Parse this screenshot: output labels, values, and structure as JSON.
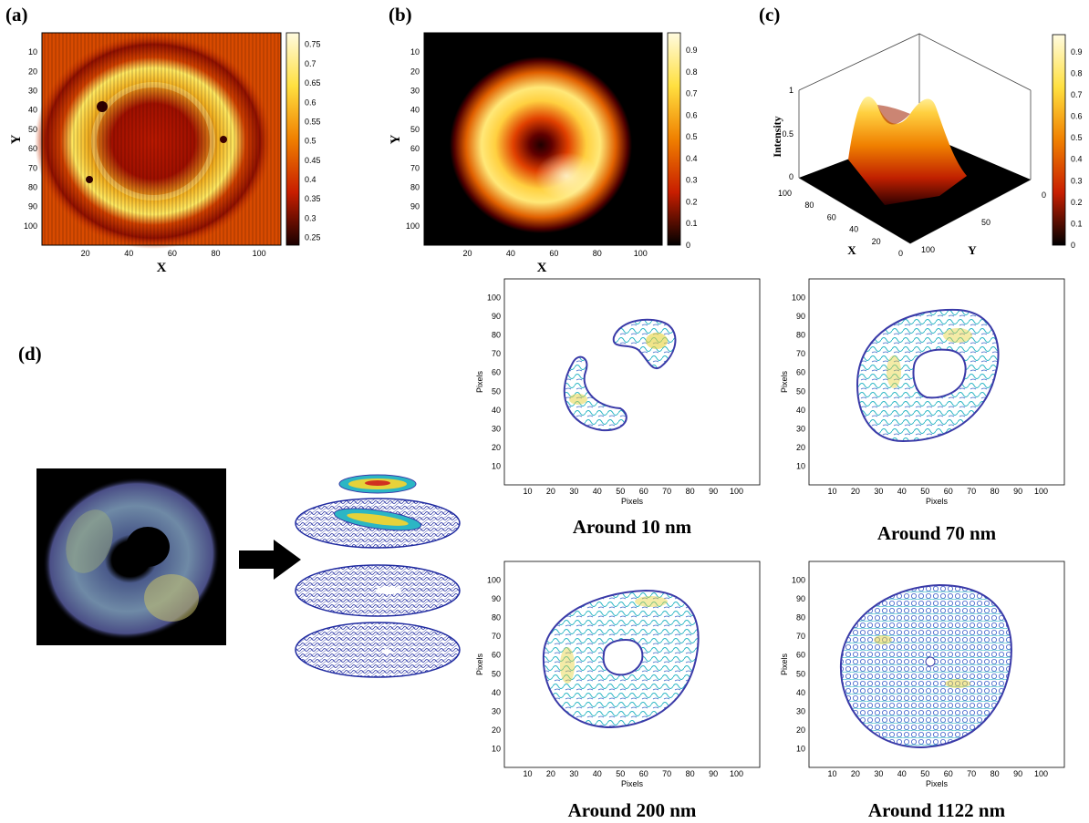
{
  "panels": {
    "a": "(a)",
    "b": "(b)",
    "c": "(c)",
    "d": "(d)"
  },
  "heatmap_a": {
    "xlabel": "X",
    "ylabel": "Y",
    "xticks": [
      "20",
      "40",
      "60",
      "80",
      "100"
    ],
    "yticks": [
      "10",
      "20",
      "30",
      "40",
      "50",
      "60",
      "70",
      "80",
      "90",
      "100"
    ],
    "colorbar_ticks": [
      "0.75",
      "0.7",
      "0.65",
      "0.6",
      "0.55",
      "0.5",
      "0.45",
      "0.4",
      "0.35",
      "0.3",
      "0.25"
    ]
  },
  "heatmap_b": {
    "xlabel": "X",
    "ylabel": "Y",
    "xticks": [
      "20",
      "40",
      "60",
      "80",
      "100"
    ],
    "yticks": [
      "10",
      "20",
      "30",
      "40",
      "50",
      "60",
      "70",
      "80",
      "90",
      "100"
    ],
    "colorbar_ticks": [
      "0.9",
      "0.8",
      "0.7",
      "0.6",
      "0.5",
      "0.4",
      "0.3",
      "0.2",
      "0.1",
      "0"
    ]
  },
  "surface_c": {
    "zlabel": "Intensity",
    "xlabel": "X",
    "ylabel": "Y",
    "zticks": [
      "1",
      "0.5",
      "0"
    ],
    "xticks": [
      "100",
      "80",
      "60",
      "40",
      "20",
      "0"
    ],
    "yticks": [
      "0",
      "50",
      "100"
    ],
    "colorbar_ticks": [
      "0.9",
      "0.8",
      "0.7",
      "0.6",
      "0.5",
      "0.4",
      "0.3",
      "0.2",
      "0.1",
      "0"
    ]
  },
  "contours": [
    {
      "caption": "Around 10 nm",
      "xlabel": "Pixels",
      "ylabel": "Pixels"
    },
    {
      "caption": "Around 70 nm",
      "xlabel": "Pixels",
      "ylabel": "Pixels"
    },
    {
      "caption": "Around 200 nm",
      "xlabel": "Pixels",
      "ylabel": "Pixels"
    },
    {
      "caption": "Around 1122 nm",
      "xlabel": "Pixels",
      "ylabel": "Pixels"
    }
  ],
  "contour_ticks": {
    "x": [
      "10",
      "20",
      "30",
      "40",
      "50",
      "60",
      "70",
      "80",
      "90",
      "100"
    ],
    "y": [
      "100",
      "90",
      "80",
      "70",
      "60",
      "50",
      "40",
      "30",
      "20",
      "10"
    ]
  },
  "colors": {
    "hot_dark": "#1a0000",
    "hot_red": "#c81e00",
    "hot_orange": "#f08000",
    "hot_yellow": "#ffe040",
    "hot_white": "#fffbe0",
    "contour_blue": "#3a3aa8",
    "contour_teal": "#2bb6c4",
    "contour_yellow": "#e6d23a"
  },
  "chart_data": [
    {
      "type": "heatmap",
      "panel": "(a)",
      "xlabel": "X",
      "ylabel": "Y",
      "xlim": [
        0,
        110
      ],
      "ylim": [
        110,
        0
      ],
      "colorbar_range": [
        0.23,
        0.78
      ],
      "colormap": "hot",
      "description_values": {
        "ring_center": [
          50,
          55
        ],
        "ring_peak": 0.75,
        "background": 0.45,
        "center": 0.35
      }
    },
    {
      "type": "heatmap",
      "panel": "(b)",
      "xlabel": "X",
      "ylabel": "Y",
      "xlim": [
        0,
        110
      ],
      "ylim": [
        110,
        0
      ],
      "colorbar_range": [
        0,
        0.98
      ],
      "colormap": "hot",
      "description_values": {
        "ring_center": [
          53,
          55
        ],
        "ring_peak": 0.95,
        "background": 0,
        "center": 0.1
      }
    },
    {
      "type": "surface",
      "panel": "(c)",
      "zlabel": "Intensity",
      "xlabel": "X",
      "ylabel": "Y",
      "zlim": [
        0,
        1
      ],
      "xlim": [
        0,
        100
      ],
      "ylim": [
        0,
        100
      ],
      "colorbar_range": [
        0,
        0.98
      ]
    },
    {
      "type": "contour",
      "caption": "Around 10 nm",
      "xlim": [
        0,
        110
      ],
      "ylim": [
        0,
        110
      ],
      "regions": [
        {
          "center": [
            62,
            77
          ],
          "shape": "crescent"
        },
        {
          "center": [
            40,
            48
          ],
          "shape": "crescent"
        }
      ]
    },
    {
      "type": "contour",
      "caption": "Around 70 nm",
      "xlim": [
        0,
        110
      ],
      "ylim": [
        0,
        110
      ],
      "regions": [
        {
          "center": [
            50,
            57
          ],
          "shape": "annulus",
          "outer": [
            30,
            32
          ],
          "inner": [
            12,
            10
          ]
        }
      ]
    },
    {
      "type": "contour",
      "caption": "Around 200 nm",
      "xlim": [
        0,
        110
      ],
      "ylim": [
        0,
        110
      ],
      "regions": [
        {
          "center": [
            50,
            57
          ],
          "shape": "annulus",
          "outer": [
            34,
            34
          ],
          "inner": [
            10,
            8
          ]
        }
      ]
    },
    {
      "type": "contour",
      "caption": "Around 1122 nm",
      "xlim": [
        0,
        110
      ],
      "ylim": [
        0,
        110
      ],
      "regions": [
        {
          "center": [
            50,
            56
          ],
          "shape": "annulus",
          "outer": [
            38,
            38
          ],
          "inner": [
            2,
            2
          ]
        }
      ]
    }
  ]
}
